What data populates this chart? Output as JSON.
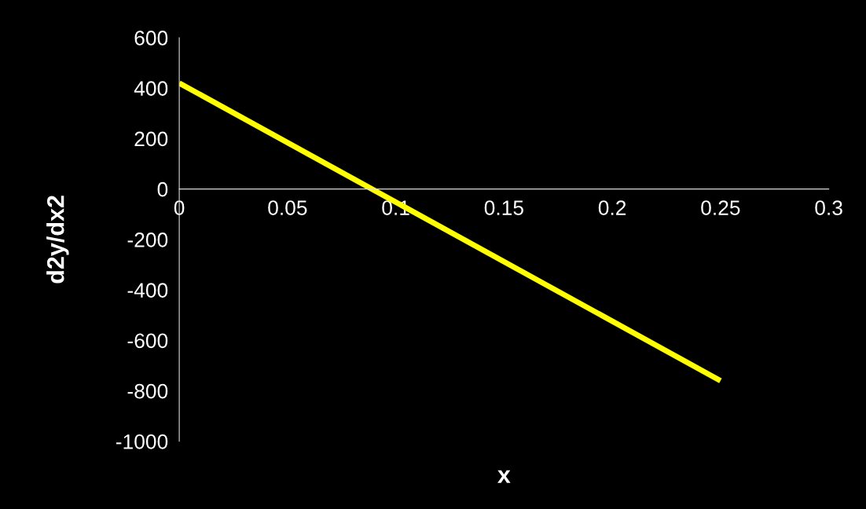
{
  "chart_data": {
    "type": "line",
    "xlabel": "x",
    "ylabel": "d2y/dx2",
    "x": [
      0,
      0.25
    ],
    "series": [
      {
        "color": "#ffff00",
        "values": [
          420,
          -760
        ]
      }
    ],
    "xlim": [
      0,
      0.3
    ],
    "xticks": [
      0,
      0.05,
      0.1,
      0.15,
      0.2,
      0.25,
      0.3
    ],
    "ylim": [
      -1000,
      600
    ],
    "yticks": [
      -1000,
      -800,
      -600,
      -400,
      -200,
      0,
      200,
      400,
      600
    ],
    "grid": false,
    "legend": false,
    "marker": "none",
    "line_style": "solid"
  }
}
